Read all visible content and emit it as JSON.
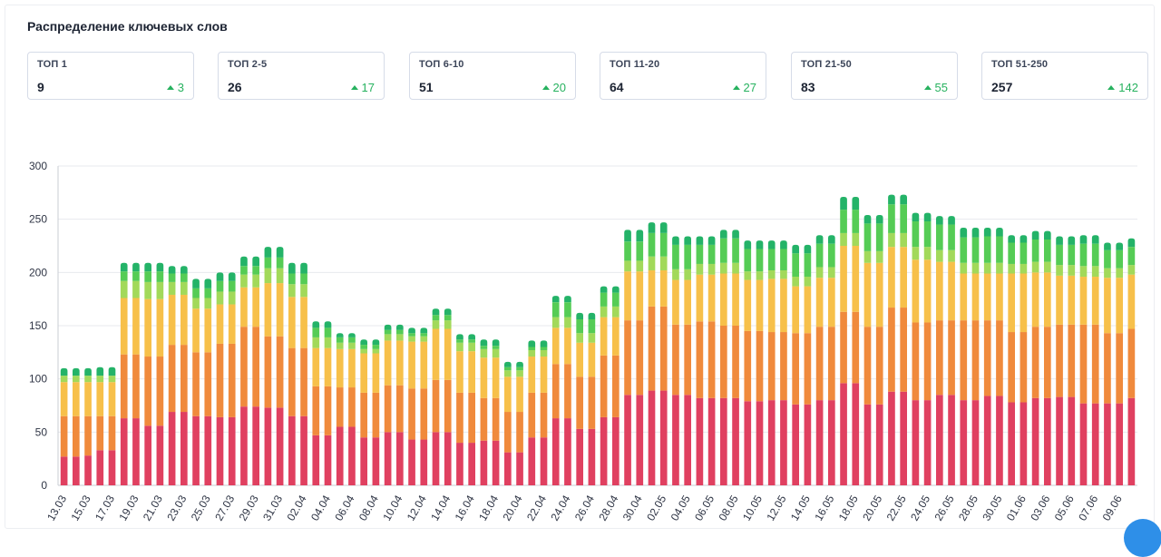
{
  "header": {
    "title": "Распределение ключевых слов"
  },
  "cards": [
    {
      "label": "ТОП 1",
      "value": "9",
      "delta": "3"
    },
    {
      "label": "ТОП 2-5",
      "value": "26",
      "delta": "17"
    },
    {
      "label": "ТОП 6-10",
      "value": "51",
      "delta": "20"
    },
    {
      "label": "ТОП 11-20",
      "value": "64",
      "delta": "27"
    },
    {
      "label": "ТОП 21-50",
      "value": "83",
      "delta": "55"
    },
    {
      "label": "ТОП 51-250",
      "value": "257",
      "delta": "142"
    }
  ],
  "colors": {
    "delta_up": "#27b25f",
    "segments": [
      "#e04060",
      "#f08a3c",
      "#f7c04a",
      "#a2d95a",
      "#55cc55",
      "#24b368"
    ]
  },
  "chart_data": {
    "type": "bar",
    "stacked": true,
    "ylim": [
      0,
      300
    ],
    "yticks": [
      0,
      50,
      100,
      150,
      200,
      250,
      300
    ],
    "grid": true,
    "categories": [
      "13.03",
      "14.03",
      "15.03",
      "16.03",
      "17.03",
      "18.03",
      "19.03",
      "20.03",
      "21.03",
      "22.03",
      "23.03",
      "24.03",
      "25.03",
      "26.03",
      "27.03",
      "28.03",
      "29.03",
      "30.03",
      "31.03",
      "01.04",
      "02.04",
      "03.04",
      "04.04",
      "05.04",
      "06.04",
      "07.04",
      "08.04",
      "09.04",
      "10.04",
      "11.04",
      "12.04",
      "13.04",
      "14.04",
      "15.04",
      "16.04",
      "17.04",
      "18.04",
      "19.04",
      "20.04",
      "21.04",
      "22.04",
      "23.04",
      "24.04",
      "25.04",
      "26.04",
      "27.04",
      "28.04",
      "29.04",
      "30.04",
      "01.05",
      "02.05",
      "03.05",
      "04.05",
      "05.05",
      "06.05",
      "07.05",
      "08.05",
      "09.05",
      "10.05",
      "11.05",
      "12.05",
      "13.05",
      "14.05",
      "15.05",
      "16.05",
      "17.05",
      "18.05",
      "19.05",
      "20.05",
      "21.05",
      "22.05",
      "23.05",
      "24.05",
      "25.05",
      "26.05",
      "27.05",
      "28.05",
      "29.05",
      "30.05",
      "31.05",
      "01.06",
      "02.06",
      "03.06",
      "04.06",
      "05.06",
      "06.06",
      "07.06",
      "08.06",
      "09.06",
      "10.06"
    ],
    "tick_labels": [
      "13.03",
      "",
      "15.03",
      "",
      "17.03",
      "",
      "19.03",
      "",
      "21.03",
      "",
      "23.03",
      "",
      "25.03",
      "",
      "27.03",
      "",
      "29.03",
      "",
      "31.03",
      "",
      "02.04",
      "",
      "04.04",
      "",
      "06.04",
      "",
      "08.04",
      "",
      "10.04",
      "",
      "12.04",
      "",
      "14.04",
      "",
      "16.04",
      "",
      "18.04",
      "",
      "20.04",
      "",
      "22.04",
      "",
      "24.04",
      "",
      "26.04",
      "",
      "28.04",
      "",
      "30.04",
      "",
      "02.05",
      "",
      "04.05",
      "",
      "06.05",
      "",
      "08.05",
      "",
      "10.05",
      "",
      "12.05",
      "",
      "14.05",
      "",
      "16.05",
      "",
      "18.05",
      "",
      "20.05",
      "",
      "22.05",
      "",
      "24.05",
      "",
      "26.05",
      "",
      "28.05",
      "",
      "30.05",
      "",
      "01.06",
      "",
      "03.06",
      "",
      "05.06",
      "",
      "07.06",
      "",
      "09.06",
      ""
    ],
    "totals": [
      110,
      110,
      110,
      111,
      111,
      209,
      209,
      209,
      209,
      206,
      206,
      194,
      194,
      200,
      200,
      215,
      215,
      224,
      224,
      209,
      209,
      154,
      154,
      143,
      143,
      137,
      137,
      151,
      151,
      148,
      148,
      166,
      166,
      142,
      142,
      137,
      137,
      116,
      116,
      136,
      136,
      178,
      178,
      162,
      162,
      187,
      187,
      240,
      240,
      247,
      247,
      234,
      234,
      234,
      240,
      240,
      230,
      230,
      230,
      230,
      226,
      226,
      235,
      235,
      271,
      271,
      254,
      254,
      273,
      273,
      256,
      256,
      253,
      253,
      242,
      242,
      242,
      242,
      242,
      235,
      235,
      239,
      239,
      234,
      234,
      235,
      235,
      228,
      228,
      232
    ],
    "segments": {
      "segment_1": [
        27,
        27,
        28,
        33,
        33,
        63,
        63,
        56,
        56,
        69,
        69,
        65,
        65,
        64,
        64,
        74,
        74,
        73,
        73,
        65,
        65,
        47,
        47,
        55,
        55,
        45,
        45,
        50,
        50,
        43,
        43,
        50,
        50,
        40,
        40,
        42,
        42,
        31,
        31,
        45,
        45,
        63,
        63,
        53,
        53,
        64,
        64,
        85,
        85,
        89,
        89,
        85,
        85,
        82,
        82,
        82,
        82,
        79,
        79,
        80,
        80,
        76,
        76,
        80,
        80,
        96,
        96,
        76,
        76,
        88,
        88,
        80,
        80,
        85,
        85,
        80,
        80,
        84,
        84,
        78,
        78,
        82,
        82,
        83,
        83,
        77,
        77,
        77,
        77,
        82
      ],
      "segment_2": [
        38,
        38,
        37,
        32,
        32,
        60,
        60,
        65,
        65,
        63,
        63,
        60,
        60,
        69,
        69,
        75,
        75,
        67,
        67,
        64,
        64,
        46,
        46,
        37,
        37,
        42,
        42,
        44,
        44,
        48,
        48,
        49,
        49,
        47,
        47,
        40,
        40,
        38,
        38,
        42,
        42,
        51,
        51,
        49,
        49,
        58,
        58,
        70,
        70,
        79,
        79,
        66,
        66,
        72,
        72,
        68,
        68,
        66,
        66,
        64,
        64,
        67,
        67,
        69,
        69,
        67,
        67,
        73,
        73,
        79,
        79,
        73,
        73,
        70,
        70,
        75,
        75,
        71,
        71,
        66,
        66,
        67,
        67,
        68,
        68,
        74,
        74,
        66,
        66,
        65
      ],
      "segment_3": [
        32,
        32,
        32,
        32,
        32,
        53,
        53,
        54,
        54,
        47,
        47,
        41,
        41,
        37,
        37,
        37,
        37,
        50,
        50,
        48,
        48,
        36,
        36,
        36,
        36,
        37,
        37,
        42,
        42,
        44,
        44,
        48,
        48,
        39,
        39,
        38,
        38,
        33,
        33,
        34,
        34,
        34,
        34,
        32,
        32,
        36,
        36,
        46,
        46,
        34,
        34,
        42,
        42,
        44,
        44,
        49,
        49,
        48,
        48,
        50,
        50,
        44,
        44,
        46,
        46,
        62,
        62,
        60,
        60,
        57,
        57,
        59,
        59,
        55,
        55,
        44,
        44,
        44,
        44,
        55,
        55,
        51,
        51,
        46,
        46,
        45,
        45,
        52,
        52,
        51
      ],
      "segment_4": [
        6,
        6,
        6,
        6,
        6,
        16,
        16,
        16,
        16,
        12,
        12,
        10,
        10,
        12,
        12,
        12,
        12,
        14,
        14,
        12,
        12,
        10,
        10,
        6,
        6,
        4,
        4,
        6,
        6,
        5,
        5,
        8,
        8,
        8,
        8,
        8,
        8,
        6,
        6,
        6,
        6,
        10,
        10,
        9,
        9,
        10,
        10,
        10,
        10,
        13,
        13,
        10,
        10,
        10,
        10,
        10,
        10,
        8,
        8,
        8,
        8,
        9,
        9,
        10,
        10,
        12,
        12,
        11,
        11,
        13,
        13,
        12,
        12,
        11,
        11,
        10,
        10,
        10,
        10,
        9,
        9,
        10,
        10,
        10,
        10,
        10,
        10,
        9,
        9,
        9
      ],
      "segment_5": [
        0,
        0,
        0,
        0,
        0,
        9,
        9,
        10,
        10,
        8,
        8,
        9,
        9,
        10,
        10,
        8,
        8,
        10,
        10,
        10,
        10,
        9,
        9,
        5,
        5,
        4,
        4,
        4,
        4,
        3,
        3,
        5,
        5,
        3,
        3,
        3,
        3,
        3,
        3,
        3,
        3,
        14,
        14,
        13,
        13,
        13,
        13,
        18,
        18,
        22,
        22,
        23,
        23,
        18,
        18,
        23,
        23,
        21,
        21,
        20,
        20,
        22,
        22,
        22,
        22,
        22,
        22,
        26,
        26,
        27,
        27,
        24,
        24,
        24,
        24,
        24,
        24,
        25,
        25,
        20,
        20,
        21,
        21,
        19,
        19,
        21,
        21,
        17,
        17,
        17
      ],
      "segment_6": [
        7,
        7,
        7,
        8,
        8,
        8,
        8,
        8,
        8,
        7,
        7,
        9,
        9,
        8,
        8,
        9,
        9,
        10,
        10,
        10,
        10,
        6,
        6,
        4,
        4,
        5,
        5,
        5,
        5,
        5,
        5,
        6,
        6,
        5,
        5,
        6,
        6,
        5,
        5,
        6,
        6,
        6,
        6,
        6,
        6,
        6,
        6,
        11,
        11,
        10,
        10,
        8,
        8,
        8,
        8,
        8,
        8,
        8,
        8,
        8,
        8,
        8,
        8,
        8,
        8,
        12,
        12,
        8,
        8,
        9,
        9,
        8,
        8,
        8,
        8,
        9,
        9,
        8,
        8,
        7,
        7,
        8,
        8,
        8,
        8,
        8,
        8,
        7,
        7,
        8
      ]
    }
  }
}
